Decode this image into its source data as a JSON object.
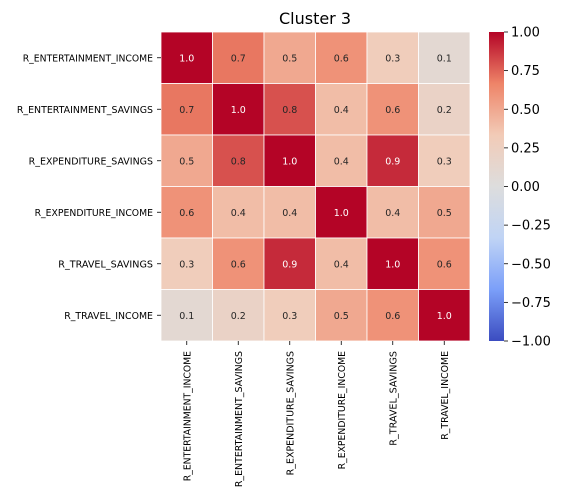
{
  "chart_data": {
    "type": "heatmap",
    "title": "Cluster 3",
    "rows": [
      "R_ENTERTAINMENT_INCOME",
      "R_ENTERTAINMENT_SAVINGS",
      "R_EXPENDITURE_SAVINGS",
      "R_EXPENDITURE_INCOME",
      "R_TRAVEL_SAVINGS",
      "R_TRAVEL_INCOME"
    ],
    "columns": [
      "R_ENTERTAINMENT_INCOME",
      "R_ENTERTAINMENT_SAVINGS",
      "R_EXPENDITURE_SAVINGS",
      "R_EXPENDITURE_INCOME",
      "R_TRAVEL_SAVINGS",
      "R_TRAVEL_INCOME"
    ],
    "values": [
      [
        1.0,
        0.7,
        0.5,
        0.6,
        0.3,
        0.1
      ],
      [
        0.7,
        1.0,
        0.8,
        0.4,
        0.6,
        0.2
      ],
      [
        0.5,
        0.8,
        1.0,
        0.4,
        0.9,
        0.3
      ],
      [
        0.6,
        0.4,
        0.4,
        1.0,
        0.4,
        0.5
      ],
      [
        0.3,
        0.6,
        0.9,
        0.4,
        1.0,
        0.6
      ],
      [
        0.1,
        0.2,
        0.3,
        0.5,
        0.6,
        1.0
      ]
    ],
    "cell_labels": [
      [
        "1.0",
        "0.7",
        "0.5",
        "0.6",
        "0.3",
        "0.1"
      ],
      [
        "0.7",
        "1.0",
        "0.8",
        "0.4",
        "0.6",
        "0.2"
      ],
      [
        "0.5",
        "0.8",
        "1.0",
        "0.4",
        "0.9",
        "0.3"
      ],
      [
        "0.6",
        "0.4",
        "0.4",
        "1.0",
        "0.4",
        "0.5"
      ],
      [
        "0.3",
        "0.6",
        "0.9",
        "0.4",
        "1.0",
        "0.6"
      ],
      [
        "0.1",
        "0.2",
        "0.3",
        "0.5",
        "0.6",
        "1.0"
      ]
    ],
    "colorbar": {
      "vmin": -1.0,
      "vmax": 1.0,
      "ticks": [
        1.0,
        0.75,
        0.5,
        0.25,
        0.0,
        -0.25,
        -0.5,
        -0.75,
        -1.0
      ],
      "tick_labels": [
        "1.00",
        "0.75",
        "0.50",
        "0.25",
        "0.00",
        "−0.25",
        "−0.50",
        "−0.75",
        "−1.00"
      ]
    },
    "colormap": "coolwarm",
    "colormap_stops": [
      "#3b4cc0",
      "#7b9ff9",
      "#c0d4f5",
      "#dddddd",
      "#f2cbb7",
      "#ee8468",
      "#b40426"
    ],
    "grid_line_color": "#ffffff"
  }
}
